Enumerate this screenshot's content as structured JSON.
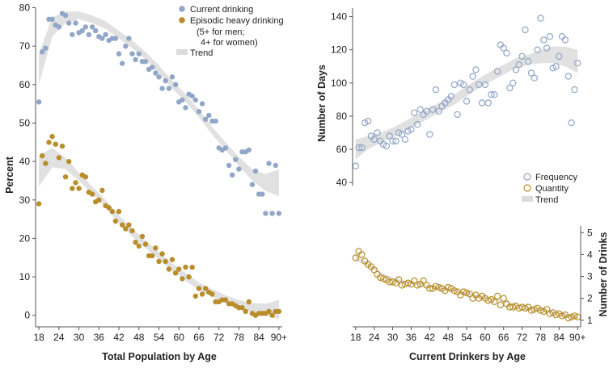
{
  "chart_data": [
    {
      "type": "scatter",
      "xlabel": "Total Population by Age",
      "ylabel": "Percent",
      "xlim": [
        17,
        91
      ],
      "ylim": [
        -3,
        82
      ],
      "x_ticks": [
        18,
        24,
        30,
        36,
        42,
        48,
        54,
        60,
        66,
        72,
        78,
        84,
        90
      ],
      "x_tick_labels": [
        "18",
        "24",
        "30",
        "36",
        "42",
        "48",
        "54",
        "60",
        "66",
        "72",
        "78",
        "84",
        "90+"
      ],
      "y_ticks": [
        0,
        10,
        20,
        30,
        40,
        50,
        60,
        70,
        80
      ],
      "y_tick_labels": [
        "0",
        "10",
        "20",
        "30",
        "40",
        "50",
        "60",
        "70",
        "80"
      ],
      "legend": {
        "position": "top-right",
        "items": [
          {
            "label": "Current drinking",
            "marker": "dot",
            "color": "#91a6c8"
          },
          {
            "label": "Episodic heavy drinking",
            "marker": "dot",
            "color": "#b98e2a"
          },
          {
            "label": "(5+ for men;",
            "marker": "none"
          },
          {
            "label": "4+ for women)",
            "marker": "none"
          },
          {
            "label": "Trend",
            "marker": "band",
            "color": "#dcdcdc"
          }
        ]
      },
      "series": [
        {
          "name": "Current drinking",
          "marker": "filled-circle",
          "color": "#91a6c8",
          "x": [
            18,
            19,
            20,
            21,
            22,
            23,
            24,
            25,
            26,
            27,
            28,
            29,
            30,
            31,
            32,
            33,
            34,
            35,
            36,
            37,
            38,
            39,
            40,
            41,
            42,
            43,
            44,
            45,
            46,
            47,
            48,
            49,
            50,
            51,
            52,
            53,
            54,
            55,
            56,
            57,
            58,
            59,
            60,
            61,
            62,
            63,
            64,
            65,
            66,
            67,
            68,
            69,
            70,
            71,
            72,
            73,
            74,
            75,
            76,
            77,
            78,
            79,
            80,
            81,
            82,
            83,
            84,
            85,
            86,
            87,
            88,
            89,
            90
          ],
          "y": [
            55.5,
            68.5,
            69.5,
            77,
            77,
            75.5,
            75,
            78.5,
            78,
            76,
            73,
            76,
            73.5,
            74,
            75,
            73,
            75,
            74,
            72.5,
            72,
            73,
            71.5,
            72,
            72,
            68,
            65.5,
            70,
            72,
            68,
            66.5,
            68,
            66,
            66,
            64,
            64.5,
            63,
            62,
            59,
            61,
            59,
            62,
            60,
            55.5,
            56,
            54,
            57.5,
            57,
            56,
            53,
            55,
            51,
            52,
            50.5,
            50.5,
            43.5,
            43,
            43.5,
            39,
            36.5,
            40.5,
            38,
            42.5,
            42.5,
            43,
            34,
            37.5,
            31.5,
            31.5,
            26.5,
            39.5,
            26.5,
            39,
            26.5
          ]
        },
        {
          "name": "Episodic heavy drinking",
          "marker": "filled-circle",
          "color": "#b98e2a",
          "x": [
            18,
            19,
            20,
            21,
            22,
            23,
            24,
            25,
            26,
            27,
            28,
            29,
            30,
            31,
            32,
            33,
            34,
            35,
            36,
            37,
            38,
            39,
            40,
            41,
            42,
            43,
            44,
            45,
            46,
            47,
            48,
            49,
            50,
            51,
            52,
            53,
            54,
            55,
            56,
            57,
            58,
            59,
            60,
            61,
            62,
            63,
            64,
            65,
            66,
            67,
            68,
            69,
            70,
            71,
            72,
            73,
            74,
            75,
            76,
            77,
            78,
            79,
            80,
            81,
            82,
            83,
            84,
            85,
            86,
            87,
            88,
            89,
            90
          ],
          "y": [
            29,
            41.5,
            39.5,
            45,
            46.5,
            44.5,
            41,
            44,
            36,
            40,
            33,
            34.5,
            33,
            36.5,
            36,
            32,
            31.5,
            29.5,
            30,
            32.5,
            28.5,
            28,
            27,
            24.5,
            27,
            23.5,
            22.5,
            23.5,
            22,
            19,
            18,
            20.5,
            18.5,
            15.5,
            15.5,
            17.5,
            14,
            16,
            14,
            12,
            14.5,
            11,
            12,
            9.5,
            12.5,
            10,
            12.5,
            5,
            7,
            5.5,
            7,
            6,
            5.5,
            3.5,
            3.5,
            4,
            4,
            3,
            3,
            2.5,
            2,
            2,
            1,
            3.5,
            0.5,
            0,
            0.5,
            0.5,
            0.5,
            1,
            0,
            1,
            1
          ]
        }
      ],
      "trends": [
        {
          "name": "Trend (current drinking)",
          "x": [
            18,
            22,
            26,
            30,
            34,
            38,
            42,
            46,
            50,
            54,
            58,
            62,
            66,
            70,
            74,
            78,
            82,
            86,
            90
          ],
          "y": [
            64,
            75,
            77.5,
            78,
            77,
            75.5,
            73,
            70.5,
            67.5,
            64,
            60,
            56.5,
            52.5,
            48,
            44,
            40,
            36.5,
            34.5,
            34.5
          ],
          "band_halfwidth": [
            4,
            2.5,
            1.5,
            1,
            1,
            1,
            1,
            1,
            1,
            1,
            1,
            1,
            1,
            1,
            1,
            1.2,
            1.5,
            2.2,
            3.5
          ]
        },
        {
          "name": "Trend (episodic heavy drinking)",
          "x": [
            18,
            22,
            26,
            30,
            34,
            38,
            42,
            46,
            50,
            54,
            58,
            62,
            66,
            70,
            74,
            78,
            82,
            86,
            90
          ],
          "y": [
            37.5,
            41,
            39.5,
            36,
            32.5,
            29,
            25,
            21.5,
            18.5,
            15.5,
            12.5,
            10,
            7.5,
            5.8,
            4.2,
            3,
            2,
            1.5,
            1.5
          ],
          "band_halfwidth": [
            4,
            2.5,
            1.5,
            1,
            1,
            1,
            1,
            1,
            1,
            1,
            1,
            1,
            1,
            1,
            1,
            1,
            1.2,
            1.5,
            2.5
          ]
        }
      ]
    },
    {
      "type": "scatter",
      "xlabel": "Current Drinkers by Age",
      "x_ticks": [
        18,
        24,
        30,
        36,
        42,
        48,
        54,
        60,
        66,
        72,
        78,
        84,
        90
      ],
      "x_tick_labels": [
        "18",
        "24",
        "30",
        "36",
        "42",
        "48",
        "54",
        "60",
        "66",
        "72",
        "78",
        "84",
        "90+"
      ],
      "xlim": [
        17,
        91
      ],
      "axes": [
        {
          "side": "left",
          "ylabel": "Number of Days",
          "ylim": [
            44,
            150
          ],
          "y_ticks": [
            40,
            60,
            80,
            100,
            120,
            140
          ],
          "y_tick_labels": [
            "40",
            "60",
            "80",
            "100",
            "120",
            "140"
          ]
        },
        {
          "side": "right",
          "ylabel": "Number of Drinks",
          "ylim": [
            0.7,
            5.6
          ],
          "y_ticks": [
            1,
            2,
            3,
            4,
            5
          ],
          "y_tick_labels": [
            "1",
            "2",
            "3",
            "4",
            "5"
          ]
        }
      ],
      "legend": {
        "position": "center-right",
        "items": [
          {
            "label": "Frequency",
            "marker": "open-circle",
            "color": "#91a6c8"
          },
          {
            "label": "Quantity",
            "marker": "open-circle",
            "color": "#b98e2a"
          },
          {
            "label": "Trend",
            "marker": "band",
            "color": "#dcdcdc"
          }
        ]
      },
      "series": [
        {
          "name": "Frequency",
          "axis": "left",
          "marker": "open-circle",
          "color": "#91a6c8",
          "x": [
            18,
            19,
            20,
            21,
            22,
            23,
            24,
            25,
            26,
            27,
            28,
            29,
            30,
            31,
            32,
            33,
            34,
            35,
            36,
            37,
            38,
            39,
            40,
            41,
            42,
            43,
            44,
            45,
            46,
            47,
            48,
            49,
            50,
            51,
            52,
            53,
            54,
            55,
            56,
            57,
            58,
            59,
            60,
            61,
            62,
            63,
            64,
            65,
            66,
            67,
            68,
            69,
            70,
            71,
            72,
            73,
            74,
            75,
            76,
            77,
            78,
            79,
            80,
            81,
            82,
            83,
            84,
            85,
            86,
            87,
            88,
            89,
            90
          ],
          "y": [
            50,
            61,
            61,
            76,
            77,
            68,
            66,
            70,
            65,
            63,
            62,
            68,
            65,
            65,
            70,
            69,
            66,
            71,
            72,
            82,
            75,
            84,
            81,
            83,
            69,
            84,
            96,
            83,
            86,
            88,
            90,
            92,
            99,
            81,
            100,
            99,
            89,
            96,
            104,
            108,
            99,
            88,
            99,
            88,
            93,
            93,
            107,
            123,
            121,
            118,
            97,
            100,
            108,
            111,
            116,
            132,
            113,
            106,
            103,
            120,
            139,
            126,
            121,
            128,
            109,
            110,
            116,
            128,
            126,
            104,
            76,
            96,
            112
          ]
        },
        {
          "name": "Quantity",
          "axis": "right",
          "marker": "open-circle",
          "color": "#b98e2a",
          "x": [
            18,
            19,
            20,
            21,
            22,
            23,
            24,
            25,
            26,
            27,
            28,
            29,
            30,
            31,
            32,
            33,
            34,
            35,
            36,
            37,
            38,
            39,
            40,
            41,
            42,
            43,
            44,
            45,
            46,
            47,
            48,
            49,
            50,
            51,
            52,
            53,
            54,
            55,
            56,
            57,
            58,
            59,
            60,
            61,
            62,
            63,
            64,
            65,
            66,
            67,
            68,
            69,
            70,
            71,
            72,
            73,
            74,
            75,
            76,
            77,
            78,
            79,
            80,
            81,
            82,
            83,
            84,
            85,
            86,
            87,
            88,
            89,
            90
          ],
          "y": [
            3.85,
            4.15,
            4.0,
            3.7,
            3.55,
            3.45,
            3.3,
            3.1,
            2.95,
            2.9,
            2.85,
            2.75,
            2.75,
            2.7,
            2.85,
            2.6,
            2.65,
            2.7,
            2.65,
            2.8,
            2.6,
            2.65,
            2.8,
            2.6,
            2.45,
            2.45,
            2.55,
            2.5,
            2.45,
            2.35,
            2.5,
            2.45,
            2.35,
            2.3,
            2.15,
            2.3,
            2.25,
            2.2,
            2.0,
            2.15,
            2.0,
            2.1,
            2.0,
            1.9,
            1.95,
            1.85,
            2.1,
            1.7,
            2.0,
            1.75,
            1.6,
            1.6,
            1.65,
            1.55,
            1.6,
            1.55,
            1.6,
            1.45,
            1.5,
            1.55,
            1.45,
            1.4,
            1.5,
            1.3,
            1.35,
            1.25,
            1.3,
            1.2,
            1.25,
            1.1,
            1.15,
            1.2,
            1.15
          ]
        }
      ],
      "trends": [
        {
          "name": "Trend (frequency)",
          "axis": "left",
          "x": [
            18,
            22,
            26,
            30,
            34,
            38,
            42,
            46,
            50,
            54,
            58,
            62,
            66,
            70,
            74,
            78,
            82,
            86,
            90
          ],
          "y": [
            60,
            64,
            67,
            70,
            74,
            78,
            82,
            86,
            90,
            95,
            100,
            104,
            108,
            112,
            114,
            116,
            117,
            116,
            113
          ],
          "band_halfwidth": [
            6,
            4,
            3,
            3,
            3,
            3,
            3,
            3,
            3,
            3,
            3,
            3,
            3,
            3,
            3,
            4,
            5,
            6,
            7
          ]
        },
        {
          "name": "Trend (quantity)",
          "axis": "right",
          "x": [
            18,
            22,
            26,
            30,
            34,
            38,
            42,
            46,
            50,
            54,
            58,
            62,
            66,
            70,
            74,
            78,
            82,
            86,
            90
          ],
          "y": [
            3.85,
            3.55,
            3.15,
            2.9,
            2.75,
            2.65,
            2.55,
            2.45,
            2.35,
            2.25,
            2.1,
            1.98,
            1.85,
            1.72,
            1.6,
            1.48,
            1.35,
            1.25,
            1.15
          ],
          "band_halfwidth": [
            0.12,
            0.08,
            0.05,
            0.05,
            0.04,
            0.04,
            0.04,
            0.04,
            0.04,
            0.04,
            0.04,
            0.04,
            0.04,
            0.04,
            0.04,
            0.04,
            0.05,
            0.06,
            0.08
          ]
        }
      ]
    }
  ]
}
